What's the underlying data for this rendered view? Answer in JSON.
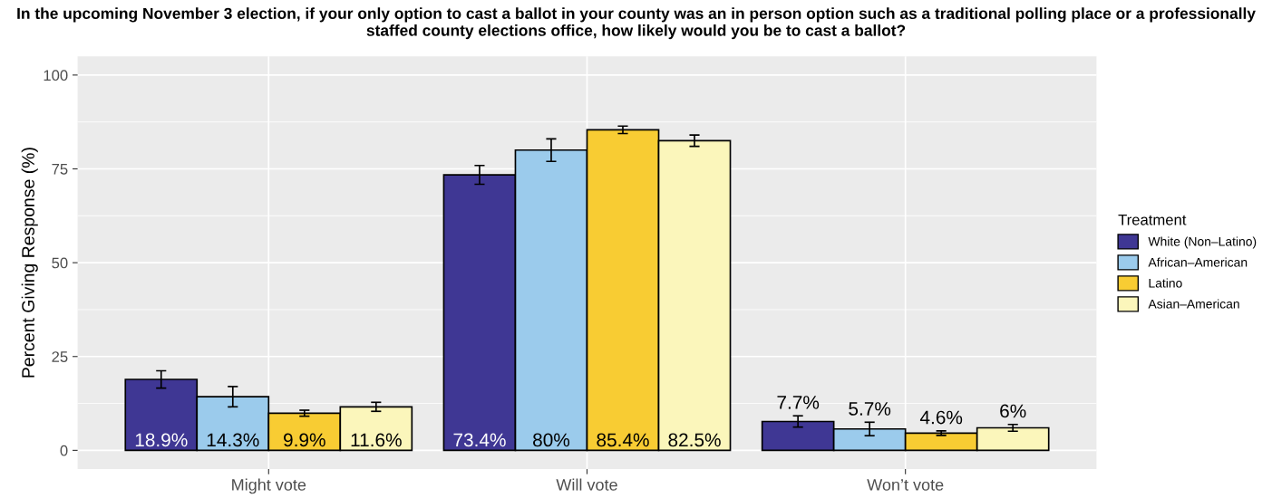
{
  "chart_data": {
    "type": "bar",
    "title": "In the upcoming November 3 election, if your only option to cast a ballot in your county was an in person option such as a traditional polling place or a professionally staffed county elections office, how likely would you be to cast a ballot?",
    "ylabel": "Percent Giving Response (%)",
    "legend_title": "Treatment",
    "categories": [
      "Might vote",
      "Will vote",
      "Won’t vote"
    ],
    "series": [
      {
        "name": "White (Non–Latino)",
        "color": "#3f3794",
        "values": [
          18.9,
          73.4,
          7.7
        ],
        "errors": [
          2.3,
          2.5,
          1.5
        ],
        "value_labels": [
          "18.9%",
          "73.4%",
          "7.7%"
        ]
      },
      {
        "name": "African–American",
        "color": "#9bcbec",
        "values": [
          14.3,
          80,
          5.7
        ],
        "errors": [
          2.7,
          3.0,
          1.8
        ],
        "value_labels": [
          "14.3%",
          "80%",
          "5.7%"
        ]
      },
      {
        "name": "Latino",
        "color": "#f8cc33",
        "values": [
          9.9,
          85.4,
          4.6
        ],
        "errors": [
          0.8,
          1.0,
          0.6
        ],
        "value_labels": [
          "9.9%",
          "85.4%",
          "4.6%"
        ]
      },
      {
        "name": "Asian–American",
        "color": "#fbf6bb",
        "values": [
          11.6,
          82.5,
          6
        ],
        "errors": [
          1.2,
          1.5,
          0.9
        ],
        "value_labels": [
          "11.6%",
          "82.5%",
          "6%"
        ]
      }
    ],
    "ylim": [
      -5,
      105
    ],
    "yticks": [
      0,
      25,
      50,
      75,
      100
    ],
    "grid": true,
    "legend": "right"
  }
}
